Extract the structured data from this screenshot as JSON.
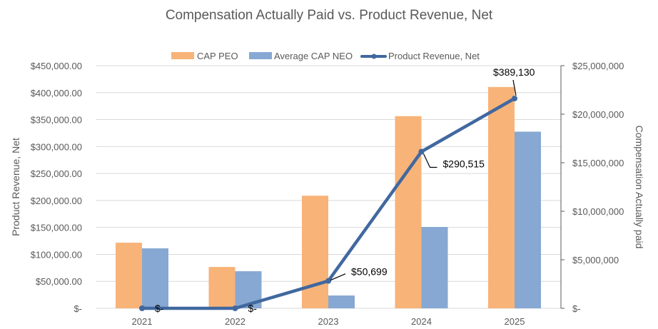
{
  "chart_data": {
    "type": "bar+line",
    "title": "Compensation Actually Paid vs. Product Revenue, Net",
    "categories": [
      "2021",
      "2022",
      "2023",
      "2024",
      "2025"
    ],
    "ylabel_left": "Product Revenue, Net",
    "ylabel_right": "Compensation Actually paid",
    "ylim_left": [
      0,
      450000
    ],
    "ylim_right": [
      0,
      25000000
    ],
    "left_ticks": [
      "$-",
      "$50,000.00",
      "$100,000.00",
      "$150,000.00",
      "$200,000.00",
      "$250,000.00",
      "$300,000.00",
      "$350,000.00",
      "$400,000.00",
      "$450,000.00"
    ],
    "right_ticks": [
      "$-",
      "$5,000,000",
      "$10,000,000",
      "$15,000,000",
      "$20,000,000",
      "$25,000,000"
    ],
    "grid": true,
    "legend_position": "top",
    "series": [
      {
        "name": "CAP PEO",
        "type": "bar",
        "axis": "right",
        "color": "#F8B378",
        "values": [
          6760000,
          4260000,
          11600000,
          19800000,
          22800000
        ]
      },
      {
        "name": "Average CAP NEO",
        "type": "bar",
        "axis": "right",
        "color": "#87A8D2",
        "values": [
          6180000,
          3820000,
          1320000,
          8380000,
          18200000
        ]
      },
      {
        "name": "Product Revenue, Net",
        "type": "line",
        "axis": "left",
        "color": "#41689F",
        "values": [
          0,
          0,
          50699,
          290515,
          389130
        ],
        "data_labels": [
          "$-",
          "$-",
          "$50,699",
          "$290,515",
          "$389,130"
        ]
      }
    ]
  }
}
